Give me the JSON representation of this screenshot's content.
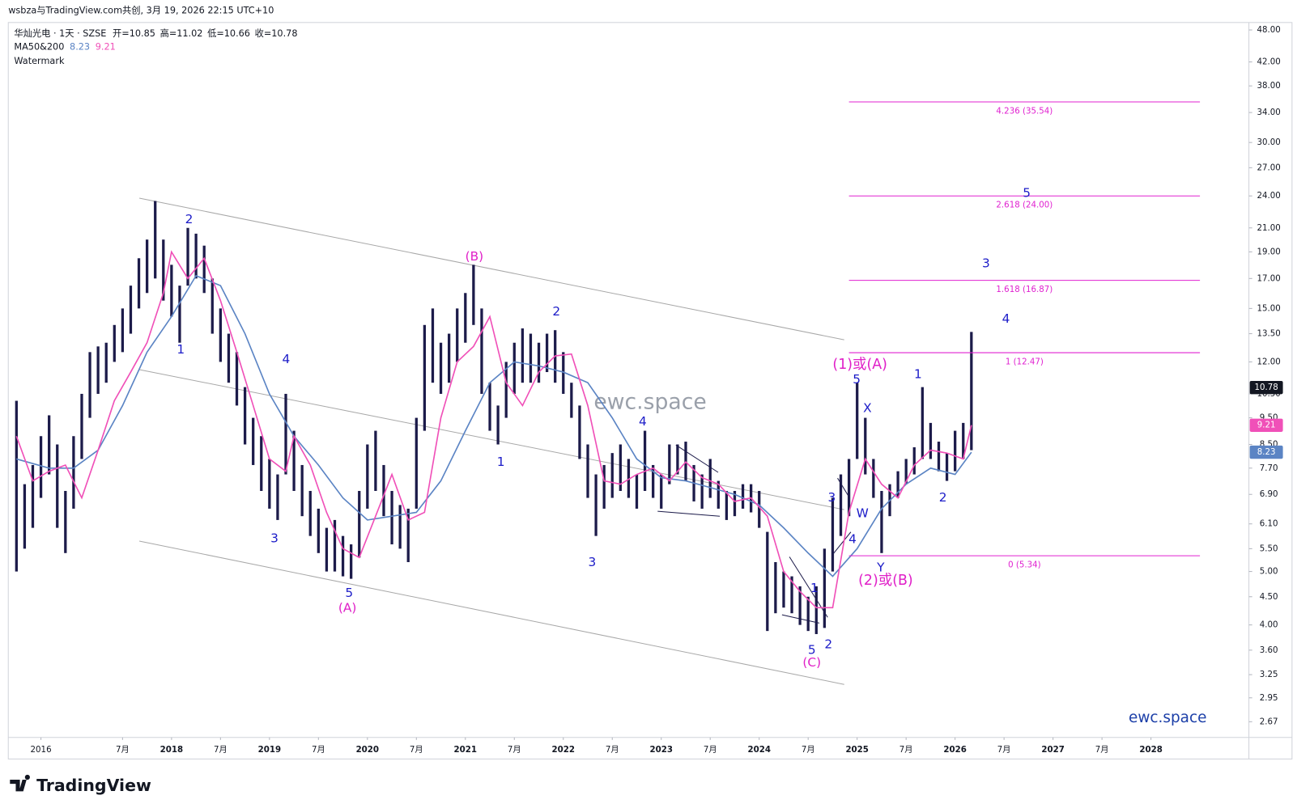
{
  "header": "wsbza与TradingView.com共创, 3月 19, 2026 22:15 UTC+10",
  "brand": "TradingView",
  "chart_data": {
    "type": "candlestick",
    "title": "华灿光电 · 1天 · SZSE",
    "quote": [
      "开=10.85",
      "高=11.02",
      "低=10.66",
      "收=10.78"
    ],
    "indicator_label": "MA50&200",
    "indicator_watermark": "Watermark",
    "watermark": "ewc.space",
    "signature": "ewc.space",
    "log_scale": true,
    "grid": false,
    "color": "#1c1b4a",
    "last_price": 10.78,
    "last_price_color": "#131722",
    "xlim": [
      "2016-05",
      "2029-01"
    ],
    "ylim": [
      2.5,
      49.35
    ],
    "xticks": [
      {
        "value": "2016-09",
        "label": "2016"
      },
      {
        "value": "2017-07",
        "label": "7月"
      },
      {
        "value": "2018-01",
        "label": "2018"
      },
      {
        "value": "2018-07",
        "label": "7月"
      },
      {
        "value": "2019-01",
        "label": "2019"
      },
      {
        "value": "2019-07",
        "label": "7月"
      },
      {
        "value": "2020-01",
        "label": "2020"
      },
      {
        "value": "2020-07",
        "label": "7月"
      },
      {
        "value": "2021-01",
        "label": "2021"
      },
      {
        "value": "2021-07",
        "label": "7月"
      },
      {
        "value": "2022-01",
        "label": "2022"
      },
      {
        "value": "2022-07",
        "label": "7月"
      },
      {
        "value": "2023-01",
        "label": "2023"
      },
      {
        "value": "2023-07",
        "label": "7月"
      },
      {
        "value": "2024-01",
        "label": "2024"
      },
      {
        "value": "2024-07",
        "label": "7月"
      },
      {
        "value": "2025-01",
        "label": "2025"
      },
      {
        "value": "2025-07",
        "label": "7月"
      },
      {
        "value": "2026-01",
        "label": "2026"
      },
      {
        "value": "2026-07",
        "label": "7月"
      },
      {
        "value": "2027-01",
        "label": "2027"
      },
      {
        "value": "2027-07",
        "label": "7月"
      },
      {
        "value": "2028-01",
        "label": "2028"
      }
    ],
    "yticks": [
      {
        "value": 48,
        "label": "48.00"
      },
      {
        "value": 42,
        "label": "42.00"
      },
      {
        "value": 38,
        "label": "38.00"
      },
      {
        "value": 34,
        "label": "34.00"
      },
      {
        "value": 30,
        "label": "30.00"
      },
      {
        "value": 27,
        "label": "27.00"
      },
      {
        "value": 24,
        "label": "24.00"
      },
      {
        "value": 21,
        "label": "21.00"
      },
      {
        "value": 19,
        "label": "19.00"
      },
      {
        "value": 17,
        "label": "17.00"
      },
      {
        "value": 15,
        "label": "15.00"
      },
      {
        "value": 13.5,
        "label": "13.50"
      },
      {
        "value": 12,
        "label": "12.00"
      },
      {
        "value": 10.5,
        "label": "10.50"
      },
      {
        "value": 9.5,
        "label": "9.50"
      },
      {
        "value": 8.5,
        "label": "8.50"
      },
      {
        "value": 7.7,
        "label": "7.70"
      },
      {
        "value": 6.9,
        "label": "6.90"
      },
      {
        "value": 6.1,
        "label": "6.10"
      },
      {
        "value": 5.5,
        "label": "5.50"
      },
      {
        "value": 5,
        "label": "5.00"
      },
      {
        "value": 4.5,
        "label": "4.50"
      },
      {
        "value": 4,
        "label": "4.00"
      },
      {
        "value": 3.6,
        "label": "3.60"
      },
      {
        "value": 3.25,
        "label": "3.25"
      },
      {
        "value": 2.95,
        "label": "2.95"
      },
      {
        "value": 2.67,
        "label": "2.67"
      }
    ],
    "x": [
      "2016-06",
      "2016-07",
      "2016-08",
      "2016-09",
      "2016-10",
      "2016-11",
      "2016-12",
      "2017-01",
      "2017-02",
      "2017-03",
      "2017-04",
      "2017-05",
      "2017-06",
      "2017-07",
      "2017-08",
      "2017-09",
      "2017-10",
      "2017-11",
      "2017-12",
      "2018-01",
      "2018-02",
      "2018-03",
      "2018-04",
      "2018-05",
      "2018-06",
      "2018-07",
      "2018-08",
      "2018-09",
      "2018-10",
      "2018-11",
      "2018-12",
      "2019-01",
      "2019-02",
      "2019-03",
      "2019-04",
      "2019-05",
      "2019-06",
      "2019-07",
      "2019-08",
      "2019-09",
      "2019-10",
      "2019-11",
      "2019-12",
      "2020-01",
      "2020-02",
      "2020-03",
      "2020-04",
      "2020-05",
      "2020-06",
      "2020-07",
      "2020-08",
      "2020-09",
      "2020-10",
      "2020-11",
      "2020-12",
      "2021-01",
      "2021-02",
      "2021-03",
      "2021-04",
      "2021-05",
      "2021-06",
      "2021-07",
      "2021-08",
      "2021-09",
      "2021-10",
      "2021-11",
      "2021-12",
      "2022-01",
      "2022-02",
      "2022-03",
      "2022-04",
      "2022-05",
      "2022-06",
      "2022-07",
      "2022-08",
      "2022-09",
      "2022-10",
      "2022-11",
      "2022-12",
      "2023-01",
      "2023-02",
      "2023-03",
      "2023-04",
      "2023-05",
      "2023-06",
      "2023-07",
      "2023-08",
      "2023-09",
      "2023-10",
      "2023-11",
      "2023-12",
      "2024-01",
      "2024-02",
      "2024-03",
      "2024-04",
      "2024-05",
      "2024-06",
      "2024-07",
      "2024-08",
      "2024-09",
      "2024-10",
      "2024-11",
      "2024-12",
      "2025-01",
      "2025-02",
      "2025-03",
      "2025-04",
      "2025-05",
      "2025-06",
      "2025-07",
      "2025-08",
      "2025-09",
      "2025-10",
      "2025-11",
      "2025-12",
      "2026-01",
      "2026-02",
      "2026-03"
    ],
    "low": [
      5.0,
      5.5,
      6.0,
      6.8,
      7.5,
      6.0,
      5.4,
      6.5,
      8.0,
      9.5,
      10.5,
      11.0,
      12.0,
      12.5,
      13.5,
      15.0,
      16.0,
      17.0,
      15.5,
      14.5,
      13.0,
      16.5,
      17.0,
      16.0,
      13.5,
      12.0,
      11.0,
      10.0,
      8.5,
      7.8,
      7.0,
      6.5,
      6.2,
      7.5,
      7.0,
      6.3,
      5.8,
      5.4,
      5.0,
      5.0,
      4.9,
      4.85,
      5.3,
      6.5,
      7.0,
      6.3,
      5.6,
      5.5,
      5.2,
      6.5,
      9.0,
      11.0,
      10.5,
      11.0,
      12.0,
      13.0,
      14.0,
      10.5,
      9.0,
      8.5,
      9.5,
      10.5,
      11.0,
      11.0,
      11.0,
      11.5,
      11.0,
      10.5,
      9.5,
      8.0,
      6.8,
      5.8,
      6.5,
      6.8,
      7.0,
      6.8,
      6.5,
      7.0,
      6.8,
      6.5,
      7.2,
      7.5,
      7.3,
      6.7,
      6.5,
      6.8,
      6.5,
      6.2,
      6.3,
      6.5,
      6.4,
      6.0,
      3.9,
      4.2,
      4.3,
      4.2,
      4.0,
      3.9,
      3.85,
      3.95,
      5.0,
      5.8,
      6.3,
      8.0,
      7.5,
      6.8,
      5.4,
      6.3,
      6.8,
      7.2,
      7.5,
      8.0,
      8.0,
      7.6,
      7.3,
      7.6,
      8.0,
      8.3
    ],
    "high": [
      10.2,
      7.2,
      7.8,
      8.8,
      9.6,
      8.5,
      7.0,
      8.8,
      10.5,
      12.5,
      12.8,
      13.0,
      14.0,
      15.0,
      16.5,
      18.5,
      20.0,
      23.5,
      20.0,
      18.0,
      16.5,
      21.0,
      20.5,
      19.5,
      17.0,
      15.0,
      13.5,
      12.5,
      10.8,
      9.5,
      8.8,
      8.0,
      7.5,
      10.5,
      9.0,
      7.8,
      7.0,
      6.5,
      6.0,
      6.2,
      5.8,
      5.6,
      7.0,
      8.5,
      9.0,
      7.8,
      7.0,
      6.6,
      6.5,
      9.5,
      14.0,
      15.0,
      13.0,
      13.5,
      15.0,
      16.0,
      18.0,
      15.0,
      11.0,
      10.0,
      12.0,
      13.0,
      13.8,
      13.5,
      13.0,
      13.5,
      13.7,
      12.5,
      11.0,
      10.0,
      8.5,
      7.5,
      7.8,
      8.2,
      8.5,
      8.0,
      7.5,
      9.0,
      7.8,
      7.5,
      8.5,
      8.5,
      8.6,
      7.8,
      7.5,
      8.0,
      7.3,
      7.0,
      7.0,
      7.2,
      7.2,
      7.0,
      5.9,
      5.2,
      5.0,
      4.9,
      4.7,
      4.5,
      4.7,
      5.5,
      6.8,
      7.5,
      8.0,
      11.0,
      9.5,
      8.0,
      7.0,
      7.2,
      7.6,
      8.0,
      8.4,
      10.8,
      9.3,
      8.6,
      8.2,
      9.0,
      9.3,
      13.6
    ],
    "ma": [
      {
        "color": "#5b84c4",
        "x": [
          "2016-06",
          "2016-10",
          "2017-01",
          "2017-04",
          "2017-07",
          "2017-10",
          "2018-01",
          "2018-04",
          "2018-07",
          "2018-10",
          "2019-01",
          "2019-04",
          "2019-07",
          "2019-10",
          "2020-01",
          "2020-04",
          "2020-07",
          "2020-10",
          "2021-01",
          "2021-04",
          "2021-07",
          "2021-10",
          "2022-01",
          "2022-04",
          "2022-07",
          "2022-10",
          "2023-01",
          "2023-04",
          "2023-07",
          "2023-10",
          "2024-01",
          "2024-04",
          "2024-07",
          "2024-10",
          "2025-01",
          "2025-04",
          "2025-07",
          "2025-10",
          "2026-01",
          "2026-03"
        ],
        "values": [
          8.0,
          7.7,
          7.7,
          8.3,
          10.0,
          12.5,
          14.5,
          17.2,
          16.5,
          13.5,
          10.5,
          8.8,
          7.8,
          6.8,
          6.2,
          6.3,
          6.4,
          7.3,
          9.0,
          11.0,
          12.0,
          11.8,
          11.5,
          11.0,
          9.5,
          8.0,
          7.4,
          7.3,
          7.1,
          6.9,
          6.6,
          6.0,
          5.4,
          4.9,
          5.5,
          6.5,
          7.2,
          7.7,
          7.5,
          8.23
        ]
      },
      {
        "color": "#f050b8",
        "x": [
          "2016-06",
          "2016-08",
          "2016-10",
          "2016-12",
          "2017-02",
          "2017-04",
          "2017-06",
          "2017-08",
          "2017-10",
          "2017-12",
          "2018-01",
          "2018-03",
          "2018-05",
          "2018-07",
          "2018-09",
          "2018-11",
          "2019-01",
          "2019-03",
          "2019-04",
          "2019-06",
          "2019-08",
          "2019-10",
          "2019-12",
          "2020-02",
          "2020-04",
          "2020-06",
          "2020-08",
          "2020-10",
          "2020-12",
          "2021-02",
          "2021-04",
          "2021-06",
          "2021-08",
          "2021-10",
          "2021-12",
          "2022-02",
          "2022-04",
          "2022-06",
          "2022-08",
          "2022-10",
          "2022-12",
          "2023-02",
          "2023-04",
          "2023-06",
          "2023-08",
          "2023-10",
          "2023-12",
          "2024-02",
          "2024-04",
          "2024-06",
          "2024-08",
          "2024-10",
          "2024-12",
          "2025-02",
          "2025-04",
          "2025-06",
          "2025-08",
          "2025-10",
          "2025-12",
          "2026-02",
          "2026-03"
        ],
        "values": [
          8.8,
          7.3,
          7.6,
          7.8,
          6.8,
          8.3,
          10.2,
          11.5,
          13.0,
          16.0,
          19.0,
          17.0,
          18.5,
          15.5,
          12.5,
          10.0,
          8.0,
          7.6,
          8.8,
          7.8,
          6.4,
          5.5,
          5.3,
          6.3,
          7.5,
          6.2,
          6.4,
          9.5,
          12.0,
          12.8,
          14.5,
          11.0,
          10.0,
          11.5,
          12.3,
          12.4,
          10.0,
          7.3,
          7.2,
          7.5,
          7.7,
          7.3,
          7.9,
          7.4,
          7.2,
          6.7,
          6.8,
          6.3,
          5.0,
          4.6,
          4.3,
          4.3,
          6.4,
          8.0,
          7.2,
          6.8,
          7.8,
          8.3,
          8.2,
          8.0,
          9.21
        ]
      }
    ],
    "fib": {
      "color": "#e020d0",
      "x_range": [
        "2024-12",
        "2028-07"
      ],
      "levels": [
        {
          "value": 35.54,
          "label": "4.236 (35.54)"
        },
        {
          "value": 24.0,
          "label": "2.618 (24.00)"
        },
        {
          "value": 16.87,
          "label": "1.618 (16.87)"
        },
        {
          "value": 12.47,
          "label": "1 (12.47)"
        },
        {
          "value": 5.34,
          "label": "0 (5.34)"
        }
      ]
    }
  },
  "annotations": [
    "2",
    "1",
    "3",
    "4",
    "5",
    "(A)",
    "(B)",
    "1",
    "2",
    "3",
    "4",
    "5",
    "(C)",
    "1",
    "2",
    "3",
    "4",
    "W",
    "5",
    "(1)或(A)",
    "X",
    "Y",
    "(2)或(B)",
    "1",
    "2",
    "3",
    "4",
    "5"
  ]
}
